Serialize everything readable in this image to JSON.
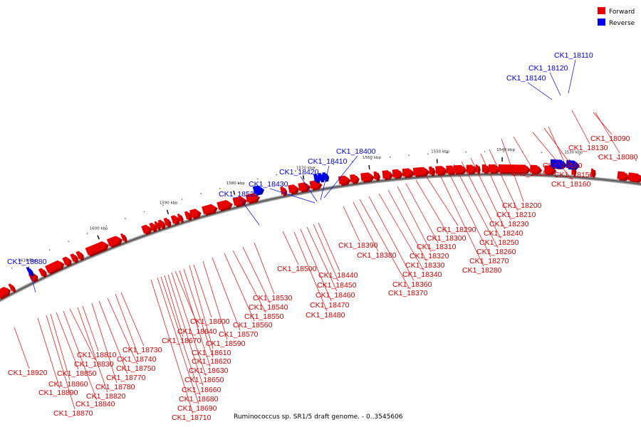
{
  "legend": [
    {
      "label": "Forward",
      "color": "#e80000"
    },
    {
      "label": "Reverse",
      "color": "#0000ee"
    }
  ],
  "caption": "Ruminococcus sp. SR1/5 draft genome. - 0..3545606",
  "ticks": [
    "1530 kbp",
    "1540 kbp",
    "1550 kbp",
    "1560 kbp",
    "1570 kbp",
    "1580 kbp",
    "1590 kbp",
    "1600 kbp",
    "1610 kbp"
  ],
  "forward_genes": [
    "CK1_18080",
    "CK1_18090",
    "CK1_18130",
    "CK1_18150",
    "CK1_18160",
    "CK1_18180",
    "CK1_18190",
    "CK1_18200",
    "CK1_18210",
    "CK1_18230",
    "CK1_18240",
    "CK1_18250",
    "CK1_18260",
    "CK1_18270",
    "CK1_18280",
    "CK1_18290",
    "CK1_18300",
    "CK1_18310",
    "CK1_18320",
    "CK1_18330",
    "CK1_18340",
    "CK1_18360",
    "CK1_18370",
    "CK1_18380",
    "CK1_18390",
    "CK1_18440",
    "CK1_18450",
    "CK1_18460",
    "CK1_18470",
    "CK1_18480",
    "CK1_18500",
    "CK1_18530",
    "CK1_18540",
    "CK1_18550",
    "CK1_18560",
    "CK1_18570",
    "CK1_18590",
    "CK1_18600",
    "CK1_18610",
    "CK1_18620",
    "CK1_18630",
    "CK1_18640",
    "CK1_18650",
    "CK1_18660",
    "CK1_18670",
    "CK1_18680",
    "CK1_18690",
    "CK1_18710",
    "CK1_18730",
    "CK1_18740",
    "CK1_18750",
    "CK1_18770",
    "CK1_18780",
    "CK1_18810",
    "CK1_18820",
    "CK1_18830",
    "CK1_18840",
    "CK1_18850",
    "CK1_18860",
    "CK1_18870",
    "CK1_18890",
    "CK1_18920"
  ],
  "reverse_genes": [
    "CK1_18110",
    "CK1_18120",
    "CK1_18140",
    "CK1_18400",
    "CK1_18410",
    "CK1_18420",
    "CK1_18430",
    "CK1_18520",
    "CK1_18880"
  ]
}
